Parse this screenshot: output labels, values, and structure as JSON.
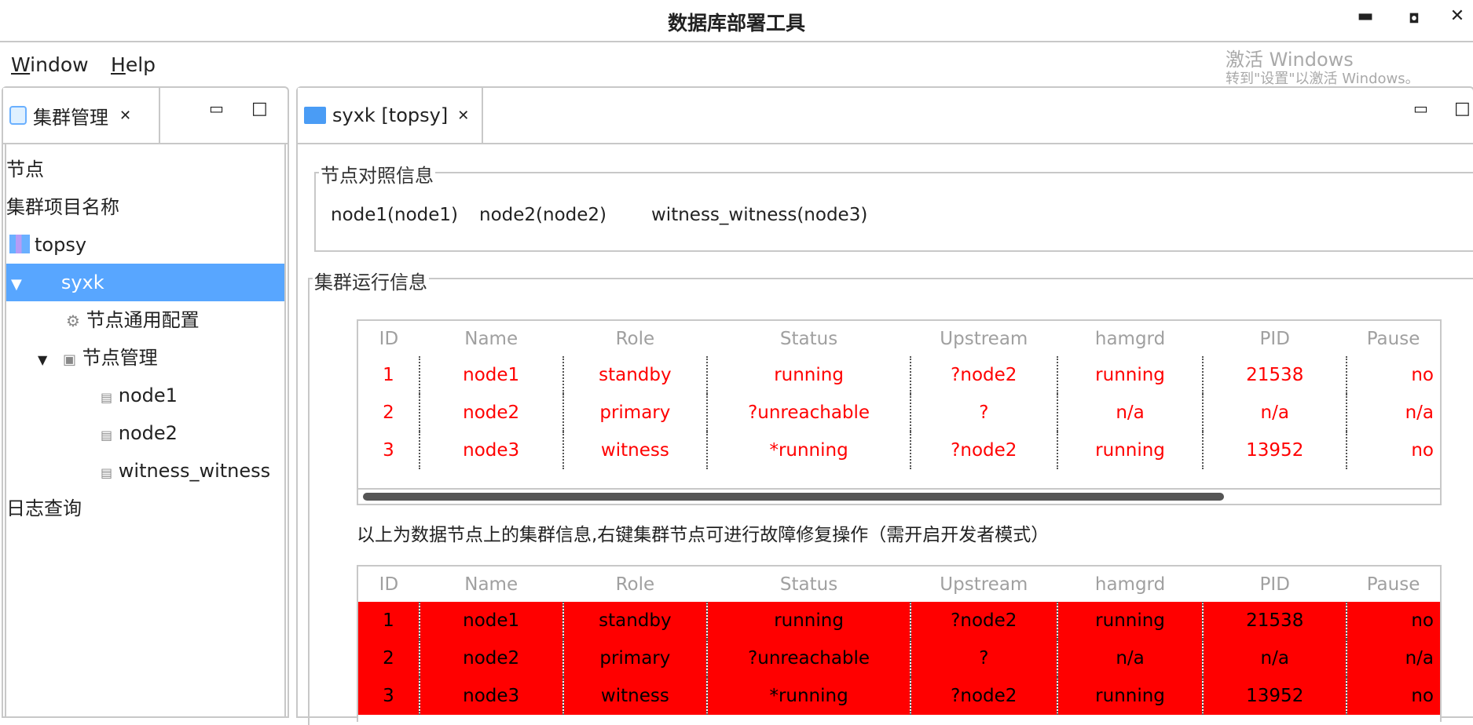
{
  "window": {
    "title": "数据库部署工具",
    "minimize": "▬",
    "maximize": "◘",
    "close": "✕"
  },
  "menu": [
    {
      "label": "Window",
      "mnemonic": "W",
      "rest": "indow"
    },
    {
      "label": "Help",
      "mnemonic": "H",
      "rest": "elp"
    }
  ],
  "left_panel": {
    "tab_label": "集群管理",
    "close": "✕",
    "minimize": "▭",
    "maximize": "□",
    "tree": [
      {
        "label": "节点",
        "level": 0
      },
      {
        "label": "集群项目名称",
        "level": 0
      },
      {
        "label": "topsy",
        "level": 0,
        "icon": "cluster-icon"
      },
      {
        "label": "syxk",
        "level": 1,
        "expanded": true,
        "selected": true
      },
      {
        "label": "节点通用配置",
        "level": 2,
        "icon": "gear-icon"
      },
      {
        "label": "节点管理",
        "level": 2,
        "expanded": true,
        "icon": "nodes-icon"
      },
      {
        "label": "node1",
        "level": 3,
        "icon": "db-icon"
      },
      {
        "label": "node2",
        "level": 3,
        "icon": "db-icon"
      },
      {
        "label": "witness_witness",
        "level": 3,
        "icon": "db-icon"
      },
      {
        "label": "日志查询",
        "level": 0
      }
    ]
  },
  "editor": {
    "tab_label": "syxk [topsy]",
    "close": "✕",
    "node_map": {
      "title": "节点对照信息",
      "items": [
        "node1(node1)",
        "node2(node2)",
        "witness_witness(node3)"
      ]
    },
    "cluster": {
      "title": "集群运行信息",
      "columns": [
        "ID",
        "Name",
        "Role",
        "Status",
        "Upstream",
        "hamgrd",
        "PID",
        "Pause"
      ],
      "rows": [
        [
          "1",
          "node1",
          "standby",
          "running",
          "?node2",
          "running",
          "21538",
          "no"
        ],
        [
          "2",
          "node2",
          "primary",
          "?unreachable",
          "?",
          "n/a",
          "n/a",
          "n/a"
        ],
        [
          "3",
          "node3",
          "witness",
          "*running",
          "?node2",
          "running",
          "13952",
          "no"
        ]
      ],
      "note": "以上为数据节点上的集群信息,右键集群节点可进行故障修复操作（需开启开发者模式）",
      "rows2": [
        [
          "1",
          "node1",
          "standby",
          "running",
          "?node2",
          "running",
          "21538",
          "no"
        ],
        [
          "2",
          "node2",
          "primary",
          "?unreachable",
          "?",
          "n/a",
          "n/a",
          "n/a"
        ],
        [
          "3",
          "node3",
          "witness",
          "*running",
          "?node2",
          "running",
          "13952",
          "no"
        ]
      ]
    }
  },
  "watermark": {
    "line1": "激活 Windows",
    "line2": "转到\"设置\"以激活 Windows。"
  },
  "colors": {
    "selection": "#58a6ff",
    "error_text": "#ff0000",
    "error_row": "#ff0000"
  }
}
